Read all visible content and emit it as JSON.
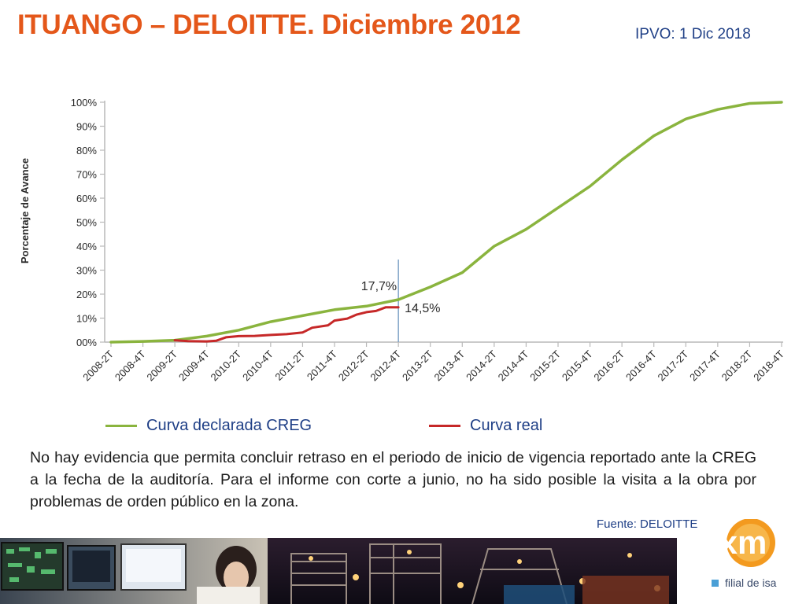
{
  "header": {
    "title": "ITUANGO – DELOITTE.  Diciembre 2012",
    "ipvo": "IPVO: 1 Dic 2018"
  },
  "chart_data": {
    "type": "line",
    "ylabel": "Porcentaje de Avance",
    "ylim": [
      0,
      100
    ],
    "y_ticks": [
      "00%",
      "10%",
      "20%",
      "30%",
      "40%",
      "50%",
      "60%",
      "70%",
      "80%",
      "90%",
      "100%"
    ],
    "x_tick_labels": [
      "2008-2T",
      "2008-4T",
      "2009-2T",
      "2009-4T",
      "2010-2T",
      "2010-4T",
      "2011-2T",
      "2011-4T",
      "2012-2T",
      "2012-4T",
      "2013-2T",
      "2013-4T",
      "2014-2T",
      "2014-4T",
      "2015-2T",
      "2015-4T",
      "2016-2T",
      "2016-4T",
      "2017-2T",
      "2017-4T",
      "2018-2T",
      "2018-4T"
    ],
    "grid": false,
    "series": [
      {
        "name": "Curva declarada CREG",
        "color": "#8ab43e",
        "x": [
          0,
          1,
          2,
          3,
          4,
          5,
          6,
          7,
          8,
          9,
          10,
          11,
          12,
          13,
          14,
          15,
          16,
          17,
          18,
          19,
          20,
          21
        ],
        "values": [
          0,
          0.3,
          0.8,
          2.5,
          5,
          8.5,
          11,
          13.5,
          15,
          17.7,
          23,
          29,
          40,
          47,
          56,
          65,
          76,
          86,
          93,
          97,
          99.5,
          100
        ]
      },
      {
        "name": "Curva real",
        "color": "#c62828",
        "x": [
          2,
          2.4,
          3,
          3.3,
          3.6,
          4,
          4.5,
          5,
          5.5,
          6,
          6.3,
          6.8,
          7,
          7.4,
          7.7,
          8,
          8.3,
          8.6,
          8.9,
          9
        ],
        "values": [
          0.8,
          0.4,
          0.3,
          0.6,
          2.0,
          2.5,
          2.6,
          3.0,
          3.3,
          4.0,
          6.0,
          7.0,
          9.0,
          9.8,
          11.5,
          12.5,
          13.0,
          14.5,
          14.5,
          14.5
        ]
      }
    ],
    "annotations": [
      {
        "text": "17,7%",
        "x": 9,
        "y": 17.7
      },
      {
        "text": "14,5%",
        "x": 9,
        "y": 14.5
      }
    ],
    "cutoff_x": 9,
    "cutoff_color": "#7fa3c7"
  },
  "legend": [
    {
      "label": "Curva declarada CREG",
      "color": "#8ab43e"
    },
    {
      "label": "Curva real",
      "color": "#c62828"
    }
  ],
  "body_text": "No hay evidencia que permita concluir retraso en el periodo de inicio de vigencia reportado ante la CREG a la fecha de la auditoría. Para el informe con corte a junio, no ha sido posible la visita a la obra por problemas de orden público en la zona.",
  "source": "Fuente: DELOITTE",
  "brand": {
    "logo_text": "xm",
    "tagline": "filial de isa",
    "accent": "#f39a1f"
  }
}
